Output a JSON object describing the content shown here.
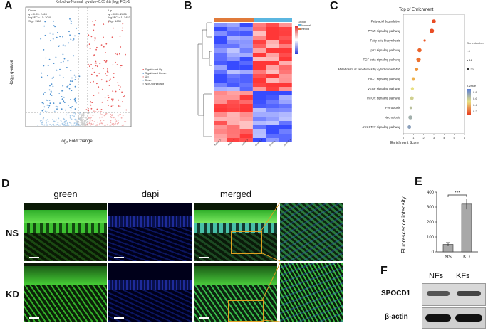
{
  "panels": {
    "A": {
      "label": "A",
      "title": "Keloid-vs-Normal, q-value<0.05 && |log₂ FC|>1",
      "down_box": [
        "Down",
        "q < 0.05: 2463",
        "log2FC < -1: 3040",
        "Sig.: 1168"
      ],
      "up_box": [
        "Up",
        "q < 0.05: 2626",
        "log2FC > 1: 1453",
        "Sig.: 1630"
      ],
      "xlabel": "log₂ FoldChange",
      "ylabel": "-log₁₀ q-value",
      "legend": [
        "Significant Up",
        "Significant Down",
        "Up",
        "Down",
        "Non-significant"
      ],
      "colors": {
        "up": "#e85a5a",
        "down": "#4a8fcf",
        "ns": "#bbbbbb"
      }
    },
    "B": {
      "label": "B",
      "legend_title": "Group",
      "groups": [
        "Normal",
        "Keloid"
      ],
      "group_colors": {
        "Normal": "#5bb6e0",
        "Keloid": "#e07a3a"
      },
      "scale_ticks": [
        "1.5",
        "1",
        "0.5",
        "0",
        "-0.5",
        "-1",
        "-1.5"
      ],
      "sample_labels": [
        "Normal_1",
        "Normal_2",
        "Normal_3",
        "Keloid_1",
        "Keloid_2",
        "Keloid_3"
      ]
    },
    "C": {
      "label": "C",
      "title": "Top of Enrichment",
      "xlabel": "Enrichment Score",
      "xticks": [
        "0",
        "1",
        "2",
        "3",
        "4",
        "5",
        "6"
      ],
      "size_legend_title": "GeneNumber",
      "size_legend_values": [
        "4",
        "12",
        "20"
      ],
      "color_legend_title": "p-value",
      "color_legend_ticks": [
        "0.8",
        "0.6",
        "0.4",
        "0.2"
      ]
    },
    "D": {
      "label": "D",
      "columns": [
        "green",
        "dapi",
        "merged"
      ],
      "rows": [
        "NS",
        "KD"
      ]
    },
    "E": {
      "label": "E",
      "ylabel": "Fluorescence intensity",
      "yticks": [
        "0",
        "100",
        "200",
        "300",
        "400"
      ],
      "significance": "***"
    },
    "F": {
      "label": "F",
      "columns": [
        "NFs",
        "KFs"
      ],
      "rows": [
        "SPOCD1",
        "β-actin"
      ]
    }
  },
  "chart_data": [
    {
      "type": "scatter",
      "title": "Enrichment (Panel C)",
      "xlabel": "Enrichment Score",
      "xlim": [
        0,
        6
      ],
      "points": [
        {
          "term": "Fatty acid degradation",
          "score": 3.0,
          "p": 0.05,
          "genes": 12
        },
        {
          "term": "PPAR signaling pathway",
          "score": 2.8,
          "p": 0.05,
          "genes": 14
        },
        {
          "term": "Fatty acid biosynthesis",
          "score": 2.1,
          "p": 0.1,
          "genes": 4
        },
        {
          "term": "p53 signaling pathway",
          "score": 1.6,
          "p": 0.15,
          "genes": 12
        },
        {
          "term": "TGF-beta signaling pathway",
          "score": 1.5,
          "p": 0.2,
          "genes": 14
        },
        {
          "term": "Metabolism of xenobiotics by cytochrome P450",
          "score": 1.3,
          "p": 0.35,
          "genes": 10
        },
        {
          "term": "HIF-1 signaling pathway",
          "score": 1.0,
          "p": 0.45,
          "genes": 10
        },
        {
          "term": "VEGF signaling pathway",
          "score": 0.9,
          "p": 0.6,
          "genes": 8
        },
        {
          "term": "mTOR signaling pathway",
          "score": 0.85,
          "p": 0.65,
          "genes": 10
        },
        {
          "term": "Ferroptosis",
          "score": 0.75,
          "p": 0.7,
          "genes": 6
        },
        {
          "term": "Necroptosis",
          "score": 0.7,
          "p": 0.75,
          "genes": 12
        },
        {
          "term": "JAK-STAT signaling pathway",
          "score": 0.6,
          "p": 0.8,
          "genes": 10
        }
      ]
    },
    {
      "type": "bar",
      "title": "",
      "ylabel": "Fluorescence intensity",
      "categories": [
        "NS",
        "KD"
      ],
      "values": [
        50,
        320
      ],
      "errors": [
        12,
        35
      ],
      "ylim": [
        0,
        400
      ]
    }
  ]
}
